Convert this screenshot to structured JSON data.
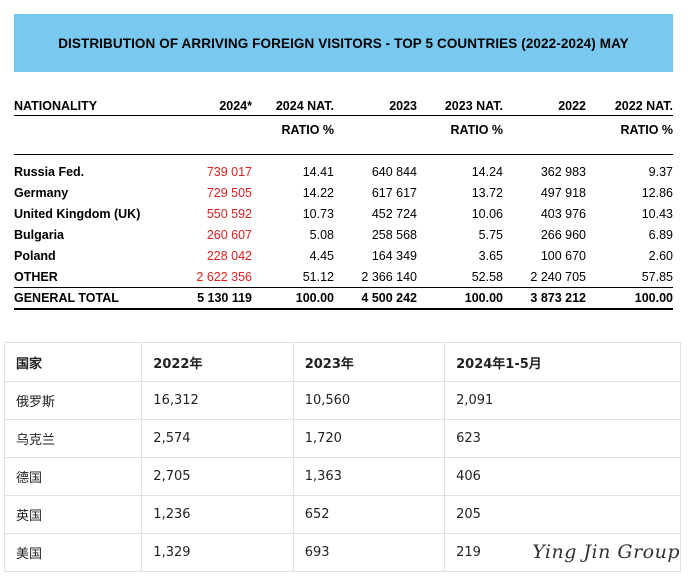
{
  "banner_title": "DISTRIBUTION OF ARRIVING FOREIGN VISITORS - TOP 5 COUNTRIES (2022-2024) MAY",
  "table1": {
    "headers": [
      "NATIONALITY",
      "2024*",
      "2024 NAT.",
      "2023",
      "2023 NAT.",
      "2022",
      "2022 NAT."
    ],
    "subheaders": [
      "",
      "",
      "RATIO %",
      "",
      "RATIO %",
      "",
      "RATIO %"
    ],
    "rows": [
      [
        "Russia Fed.",
        "739 017",
        "14.41",
        "640 844",
        "14.24",
        "362 983",
        "9.37"
      ],
      [
        "Germany",
        "729 505",
        "14.22",
        "617 617",
        "13.72",
        "497 918",
        "12.86"
      ],
      [
        "United Kingdom (UK)",
        "550 592",
        "10.73",
        "452 724",
        "10.06",
        "403 976",
        "10.43"
      ],
      [
        "Bulgaria",
        "260 607",
        "5.08",
        "258 568",
        "5.75",
        "266 960",
        "6.89"
      ],
      [
        "Poland",
        "228 042",
        "4.45",
        "164 349",
        "3.65",
        "100 670",
        "2.60"
      ],
      [
        "OTHER",
        "2 622 356",
        "51.12",
        "2 366 140",
        "52.58",
        "2 240 705",
        "57.85"
      ]
    ],
    "total": [
      "GENERAL TOTAL",
      "5 130 119",
      "100.00",
      "4 500 242",
      "100.00",
      "3 873 212",
      "100.00"
    ],
    "highlight_color": "#e02020"
  },
  "table2": {
    "headers": [
      "国家",
      "2022年",
      "2023年",
      "2024年1-5月"
    ],
    "rows": [
      [
        "俄罗斯",
        "16,312",
        "10,560",
        "2,091"
      ],
      [
        "乌克兰",
        "2,574",
        "1,720",
        "623"
      ],
      [
        "德国",
        "2,705",
        "1,363",
        "406"
      ],
      [
        "英国",
        "1,236",
        "652",
        "205"
      ],
      [
        "美国",
        "1,329",
        "693",
        "219"
      ]
    ]
  },
  "watermark": "Ying Jin Group"
}
